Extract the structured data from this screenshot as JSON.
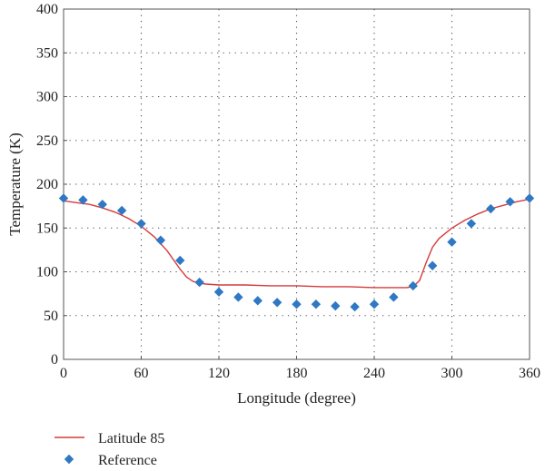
{
  "chart_data": {
    "type": "line",
    "title": "",
    "xlabel": "Longitude (degree)",
    "ylabel": "Temperature (K)",
    "xlim": [
      0,
      360
    ],
    "ylim": [
      0,
      400
    ],
    "x_ticks": [
      0,
      60,
      120,
      180,
      240,
      300,
      360
    ],
    "y_ticks": [
      0,
      50,
      100,
      150,
      200,
      250,
      300,
      350,
      400
    ],
    "grid": true,
    "legend_position": "bottom-left, below plot",
    "series": [
      {
        "name": "Latitude 85",
        "kind": "line",
        "color": "#d63a3a",
        "x": [
          0,
          10,
          20,
          30,
          40,
          50,
          60,
          70,
          80,
          90,
          95,
          100,
          105,
          110,
          120,
          140,
          160,
          180,
          200,
          220,
          240,
          255,
          265,
          270,
          275,
          280,
          285,
          290,
          300,
          310,
          320,
          330,
          340,
          350,
          360
        ],
        "y": [
          181,
          179,
          177,
          173,
          168,
          161,
          152,
          140,
          124,
          103,
          94,
          89,
          87,
          86,
          85,
          85,
          84,
          84,
          83,
          83,
          82,
          82,
          82,
          83,
          90,
          110,
          128,
          138,
          150,
          159,
          166,
          172,
          176,
          180,
          183
        ]
      },
      {
        "name": "Reference",
        "kind": "scatter",
        "color": "#2f78c4",
        "marker": "diamond",
        "x": [
          0,
          15,
          30,
          45,
          60,
          75,
          90,
          105,
          120,
          135,
          150,
          165,
          180,
          195,
          210,
          225,
          240,
          255,
          270,
          285,
          300,
          315,
          330,
          345,
          360
        ],
        "y": [
          184,
          182,
          177,
          170,
          155,
          136,
          113,
          88,
          77,
          71,
          67,
          65,
          63,
          63,
          61,
          60,
          63,
          71,
          84,
          107,
          134,
          155,
          172,
          180,
          184
        ]
      }
    ]
  }
}
